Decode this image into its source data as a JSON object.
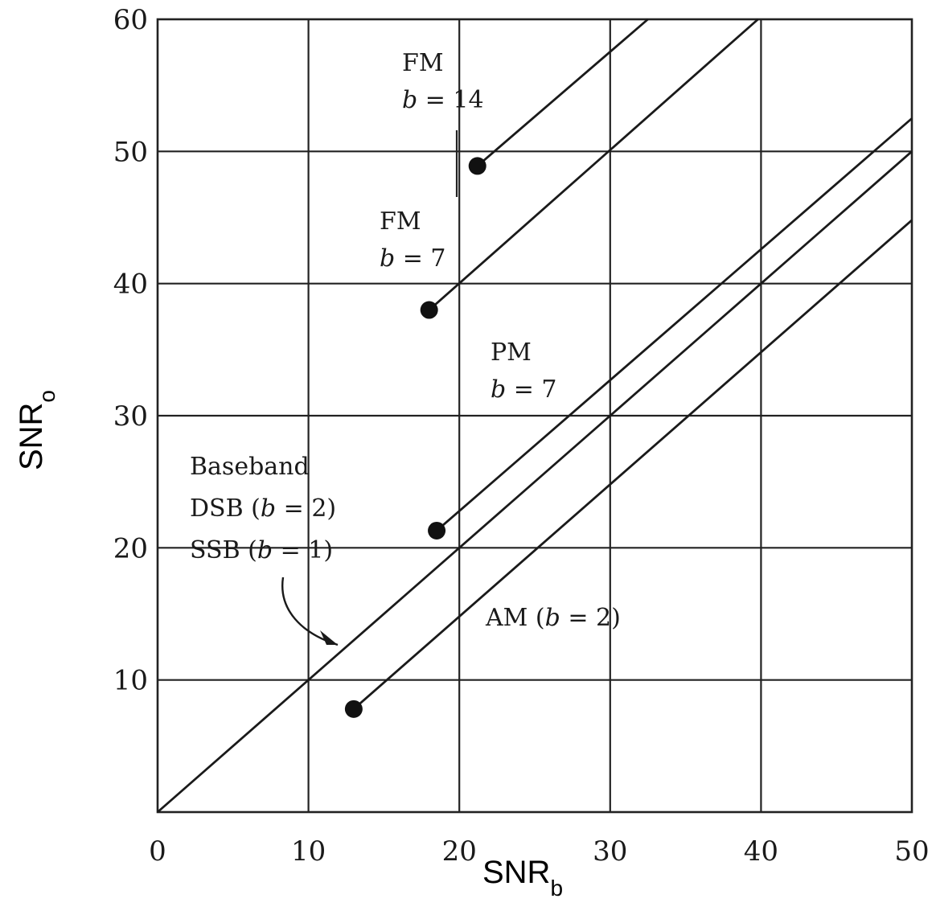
{
  "chart_data": {
    "type": "line",
    "title": "",
    "xlabel": {
      "main": "SNR",
      "sub": "b"
    },
    "ylabel": {
      "main": "SNR",
      "sub": "o"
    },
    "xlim": [
      0,
      50
    ],
    "ylim": [
      0,
      60
    ],
    "x_ticks": [
      "0",
      "10",
      "20",
      "30",
      "40",
      "50"
    ],
    "y_ticks": [
      "10",
      "20",
      "30",
      "40",
      "50",
      "60"
    ],
    "grid": true,
    "series": [
      {
        "name": "FM b = 14",
        "points": [
          [
            21.2,
            48.9
          ],
          [
            32.5,
            60
          ]
        ],
        "threshold_marker": true
      },
      {
        "name": "FM b = 7",
        "points": [
          [
            18.0,
            38.0
          ],
          [
            39.8,
            60
          ]
        ],
        "threshold_marker": true
      },
      {
        "name": "PM b = 7",
        "points": [
          [
            18.5,
            21.3
          ],
          [
            50,
            52.5
          ]
        ],
        "threshold_marker": true
      },
      {
        "name": "Baseband DSB (b = 2) SSB (b = 1)",
        "points": [
          [
            0,
            0
          ],
          [
            50,
            50
          ]
        ],
        "threshold_marker": false
      },
      {
        "name": "AM (b = 2)",
        "points": [
          [
            13.0,
            7.8
          ],
          [
            50,
            44.8
          ]
        ],
        "threshold_marker": true
      }
    ],
    "annotations": [
      {
        "lines": [
          "FM",
          "b = 14"
        ]
      },
      {
        "lines": [
          "FM",
          "b = 7"
        ]
      },
      {
        "lines": [
          "PM",
          "b = 7"
        ]
      },
      {
        "lines": [
          "Baseband",
          "DSB (b = 2)",
          "SSB  (b = 1)"
        ]
      },
      {
        "lines": [
          "AM (b = 2)"
        ]
      }
    ]
  }
}
